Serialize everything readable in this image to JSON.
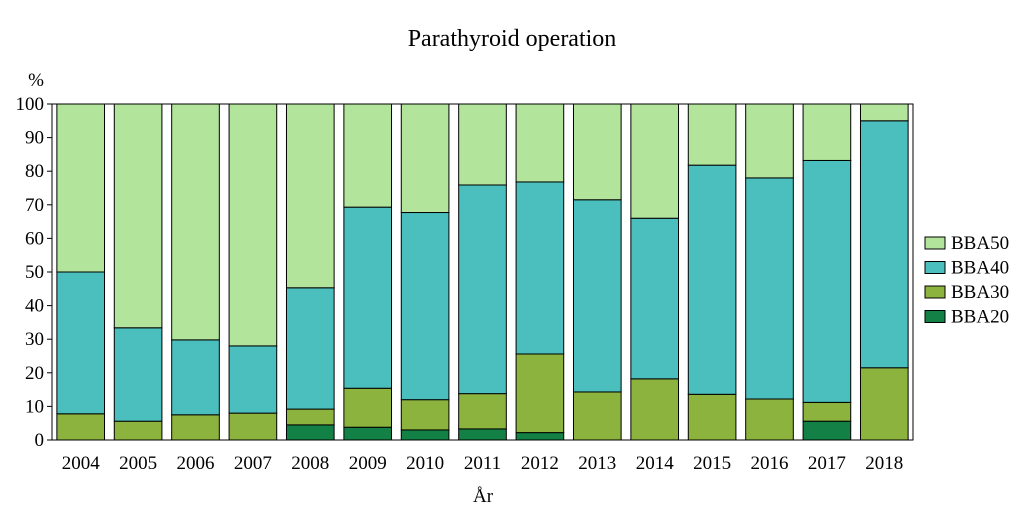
{
  "chart_data": {
    "type": "bar",
    "stacked": true,
    "title": "Parathyroid operation",
    "xlabel": "År",
    "ylabel": "%",
    "ylim": [
      0,
      100
    ],
    "yticks": [
      0,
      10,
      20,
      30,
      40,
      50,
      60,
      70,
      80,
      90,
      100
    ],
    "grid": false,
    "legend_position": "right",
    "categories": [
      "2004",
      "2005",
      "2006",
      "2007",
      "2008",
      "2009",
      "2010",
      "2011",
      "2012",
      "2013",
      "2014",
      "2015",
      "2016",
      "2017",
      "2018"
    ],
    "series": [
      {
        "name": "BBA20",
        "color": "#138045",
        "values": [
          0,
          0,
          0,
          0,
          4.5,
          3.8,
          3.0,
          3.3,
          2.2,
          0,
          0,
          0,
          0,
          5.6,
          0
        ]
      },
      {
        "name": "BBA30",
        "color": "#8db33f",
        "values": [
          7.8,
          5.6,
          7.5,
          8.0,
          4.7,
          11.6,
          9.0,
          10.5,
          23.4,
          14.3,
          18.2,
          13.6,
          12.2,
          5.6,
          21.5
        ]
      },
      {
        "name": "BBA40",
        "color": "#4bbfbd",
        "values": [
          42.2,
          27.8,
          22.3,
          20.0,
          36.1,
          53.9,
          55.7,
          62.1,
          51.2,
          57.2,
          47.8,
          68.2,
          65.8,
          72.0,
          73.5
        ]
      },
      {
        "name": "BBA50",
        "color": "#b2e49c",
        "values": [
          50.0,
          66.6,
          70.2,
          72.0,
          54.7,
          30.7,
          32.3,
          24.1,
          23.2,
          28.5,
          34.0,
          18.2,
          22.0,
          16.8,
          5.0
        ]
      }
    ],
    "legend_order": [
      "BBA50",
      "BBA40",
      "BBA30",
      "BBA20"
    ]
  }
}
